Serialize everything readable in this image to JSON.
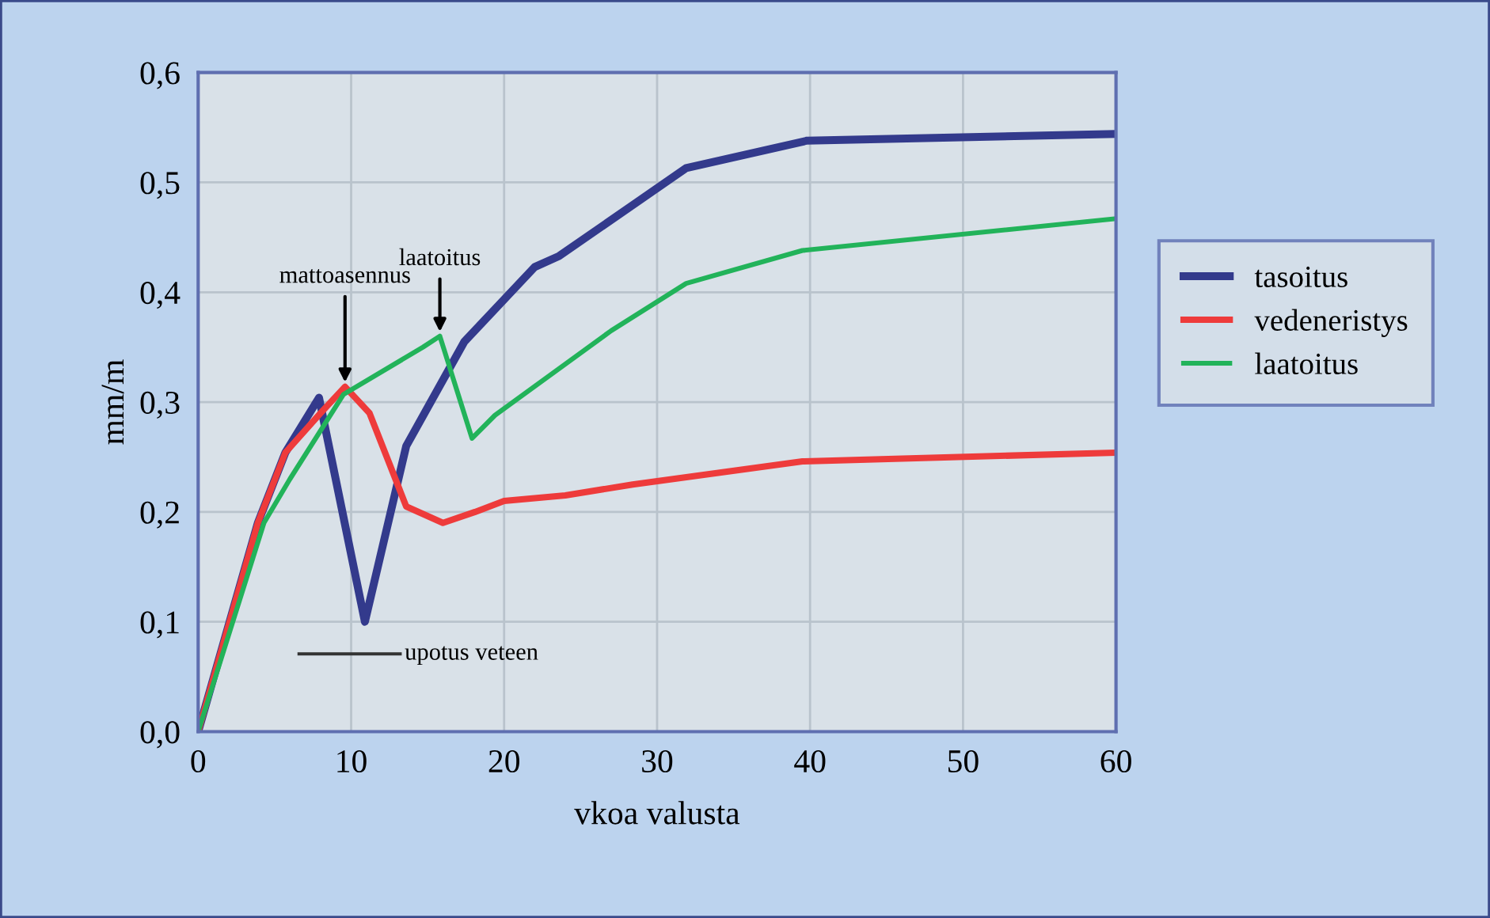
{
  "chart_data": {
    "type": "line",
    "xlabel": "vkoa valusta",
    "ylabel": "mm/m",
    "xlim": [
      0,
      60
    ],
    "xticks": [
      0,
      10,
      20,
      30,
      40,
      50,
      60
    ],
    "ylim": [
      0,
      0.6
    ],
    "yticks": [
      {
        "value": 0,
        "label": "0,0"
      },
      {
        "value": 0.1,
        "label": "0,1"
      },
      {
        "value": 0.2,
        "label": "0,2"
      },
      {
        "value": 0.3,
        "label": "0,3"
      },
      {
        "value": 0.4,
        "label": "0,4"
      },
      {
        "value": 0.5,
        "label": "0,5"
      },
      {
        "value": 0.6,
        "label": "0,6"
      }
    ],
    "grid": true,
    "legend": "right",
    "line_style": "solid",
    "series": [
      {
        "name": "tasoitus",
        "color": "#333a8c",
        "x": [
          0,
          3.9,
          5.7,
          7.9,
          10.9,
          13.6,
          17.4,
          22,
          23.6,
          31.9,
          39.8,
          60
        ],
        "values": [
          0,
          0.19,
          0.254,
          0.304,
          0.1,
          0.26,
          0.355,
          0.423,
          0.433,
          0.513,
          0.538,
          0.544
        ]
      },
      {
        "name": "vedeneristys",
        "color": "#ee3b3b",
        "x": [
          0,
          3.9,
          5.7,
          8,
          9.6,
          11.2,
          13.6,
          16,
          18.1,
          20,
          24,
          28.4,
          39.5,
          60
        ],
        "values": [
          0,
          0.19,
          0.254,
          0.29,
          0.314,
          0.29,
          0.205,
          0.19,
          0.2,
          0.21,
          0.215,
          0.225,
          0.246,
          0.254
        ]
      },
      {
        "name": "laatoitus",
        "color": "#22b35a",
        "x": [
          0,
          4.3,
          6,
          9.5,
          14.7,
          15.8,
          17.9,
          19.4,
          27,
          31.9,
          39.5,
          60
        ],
        "values": [
          0,
          0.19,
          0.23,
          0.307,
          0.35,
          0.36,
          0.267,
          0.288,
          0.365,
          0.408,
          0.438,
          0.467
        ]
      }
    ],
    "annotations": [
      {
        "text": "mattoasennus",
        "x": 9.6,
        "y": 0.314
      },
      {
        "text": "laatoitus",
        "x": 15.8,
        "y": 0.36
      },
      "upotus veteen"
    ]
  }
}
